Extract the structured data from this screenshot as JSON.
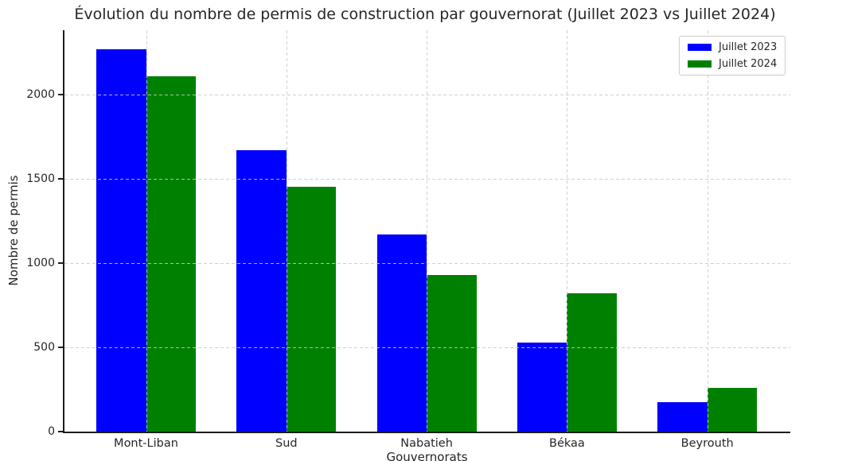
{
  "chart_data": {
    "type": "bar",
    "title": "Évolution du nombre de permis de construction par gouvernorat (Juillet 2023 vs Juillet 2024)",
    "xlabel": "Gouvernorats",
    "ylabel": "Nombre de permis",
    "categories": [
      "Mont-Liban",
      "Sud",
      "Nabatieh",
      "Békaa",
      "Beyrouth"
    ],
    "series": [
      {
        "name": "Juillet 2023",
        "color": "#0000ff",
        "values": [
          2265,
          1670,
          1170,
          530,
          175
        ]
      },
      {
        "name": "Juillet 2024",
        "color": "#008000",
        "values": [
          2105,
          1450,
          930,
          820,
          260
        ]
      }
    ],
    "ylim": [
      0,
      2380
    ],
    "y_ticks": [
      0,
      500,
      1000,
      1500,
      2000
    ],
    "grid": true,
    "grid_style": "dashed",
    "grid_over_bars": true,
    "legend_position": "upper right",
    "background_color": "#ffffff",
    "spine_color": "#1c1c1c"
  }
}
